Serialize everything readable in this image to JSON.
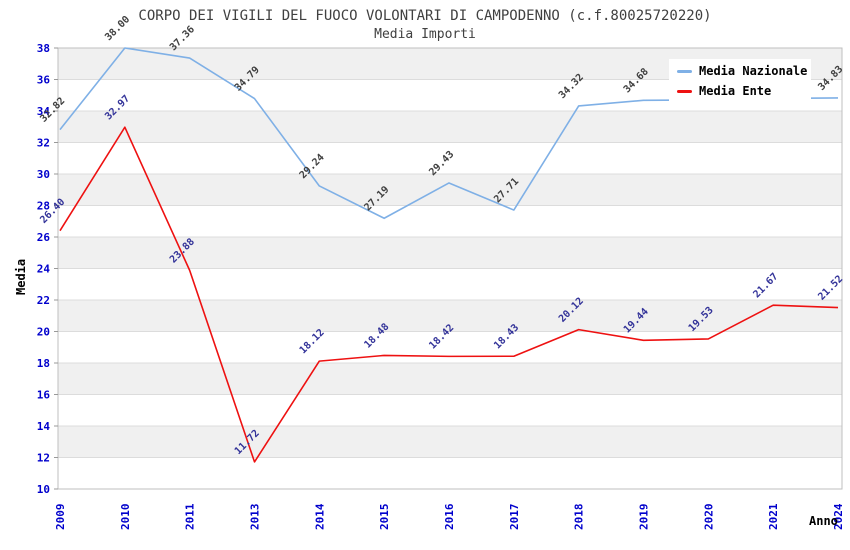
{
  "chart": {
    "title": "CORPO DEI VIGILI DEL FUOCO VOLONTARI DI CAMPODENNO (c.f.80025720220)",
    "subtitle": "Media Importi",
    "ylabel": "Media",
    "xlabel": "Anno"
  },
  "legend": {
    "items": [
      {
        "label": "Media Nazionale",
        "color": "#7FB0E6"
      },
      {
        "label": "Media Ente",
        "color": "#EE1111"
      }
    ]
  },
  "chart_data": {
    "type": "line",
    "title": "CORPO DEI VIGILI DEL FUOCO VOLONTARI DI CAMPODENNO (c.f.80025720220)",
    "subtitle": "Media Importi",
    "xlabel": "Anno",
    "ylabel": "Media",
    "categories": [
      "2009",
      "2010",
      "2011",
      "2013",
      "2014",
      "2015",
      "2016",
      "2017",
      "2018",
      "2019",
      "2020",
      "2021",
      "2024"
    ],
    "series": [
      {
        "name": "Media Nazionale",
        "color": "#7FB0E6",
        "label_color": "#404040",
        "values": [
          32.82,
          38.0,
          37.36,
          34.79,
          29.24,
          27.19,
          29.43,
          27.71,
          34.32,
          34.68,
          34.7,
          34.8,
          34.83
        ],
        "labels": [
          "32.82",
          "38.00",
          "37.36",
          "34.79",
          "29.24",
          "27.19",
          "29.43",
          "27.71",
          "34.32",
          "34.68",
          null,
          null,
          "34.83"
        ]
      },
      {
        "name": "Media Ente",
        "color": "#EE1111",
        "label_color": "#333399",
        "values": [
          26.4,
          32.97,
          23.88,
          11.72,
          18.12,
          18.48,
          18.42,
          18.43,
          20.12,
          19.44,
          19.53,
          21.67,
          21.52
        ],
        "labels": [
          "26.40",
          "32.97",
          "23.88",
          "11.72",
          "18.12",
          "18.48",
          "18.42",
          "18.43",
          "20.12",
          "19.44",
          "19.53",
          "21.67",
          "21.52"
        ]
      }
    ],
    "ylim": [
      10,
      38
    ],
    "ytick_step": 2,
    "yticks": [
      10,
      12,
      14,
      16,
      18,
      20,
      22,
      24,
      26,
      28,
      30,
      32,
      34,
      36,
      38
    ],
    "grid": true,
    "band_colors": [
      "#F0F0F0",
      "#FFFFFF"
    ],
    "gridline_color": "#DCDCDC",
    "plot_border_color": "#BFBFBF",
    "tick_label_color": "#0000CC",
    "legend_position": "top-right"
  }
}
